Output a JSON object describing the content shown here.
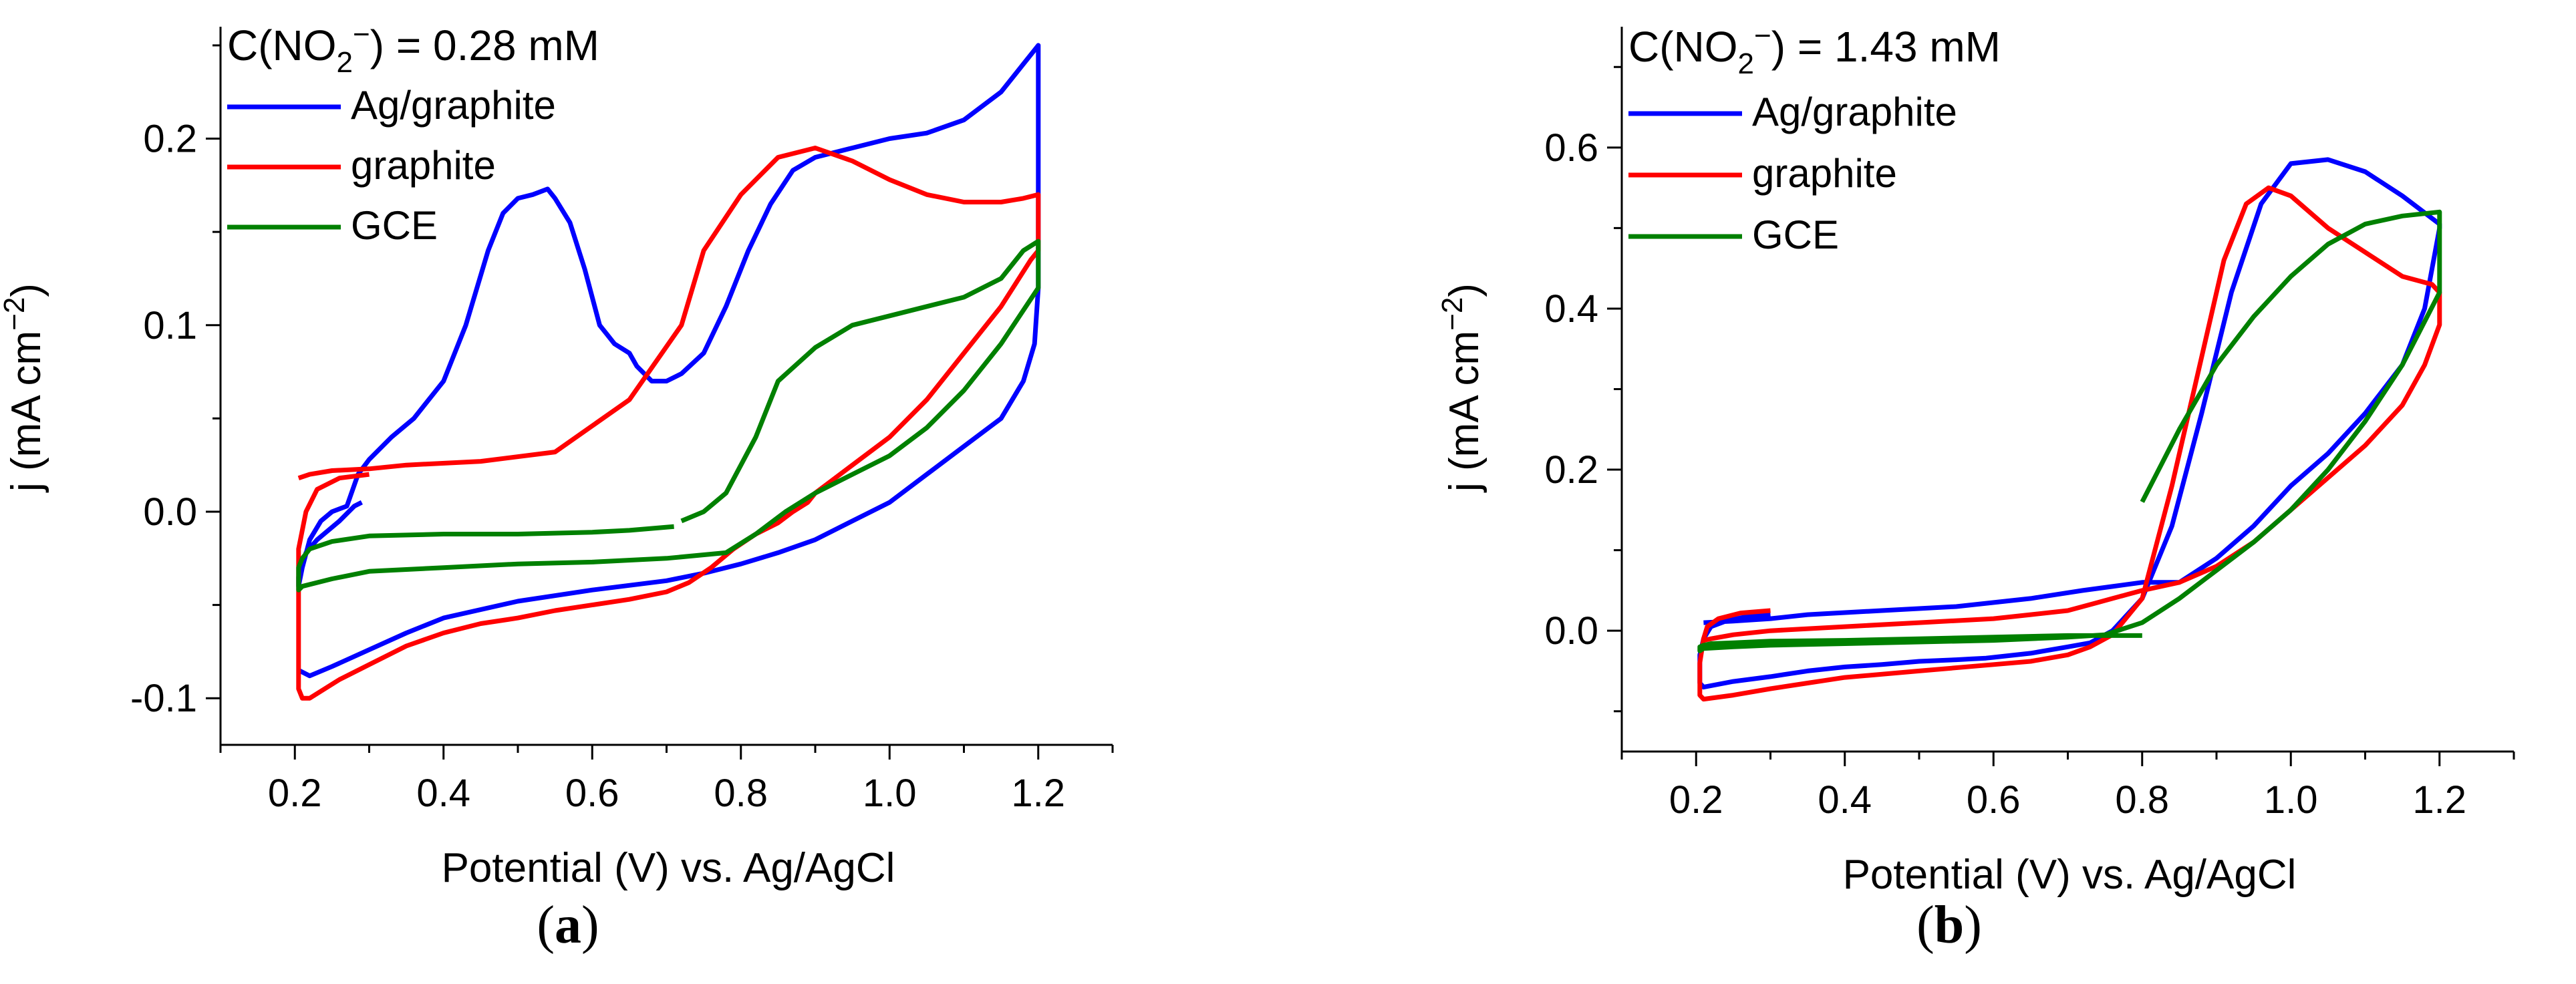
{
  "chart_data": [
    {
      "id": "a",
      "type": "line",
      "panel_label": "a",
      "title": "C(NO2⁻) = 0.28 mM",
      "title_parts": {
        "pre": "C(NO",
        "sub": "2",
        "sup": "−",
        "post": ") = 0.28 mM"
      },
      "xlabel": "Potential (V) vs. Ag/AgCl",
      "ylabel": "j (mA cm⁻²)",
      "ylabel_parts": {
        "pre": "j (mA cm",
        "sup": "−2",
        "post": ")"
      },
      "xlim": [
        0.1,
        1.3
      ],
      "ylim": [
        -0.125,
        0.26
      ],
      "xticks": [
        0.2,
        0.4,
        0.6,
        0.8,
        1.0,
        1.2
      ],
      "xtick_labels": [
        "0.2",
        "0.4",
        "0.6",
        "0.8",
        "1.0",
        "1.2"
      ],
      "yticks": [
        -0.1,
        0.0,
        0.1,
        0.2
      ],
      "ytick_labels": [
        "-0.1",
        "0.0",
        "0.1",
        "0.2"
      ],
      "legend_position": "top-left",
      "series": [
        {
          "name": "Ag/graphite",
          "color": "#0000ff",
          "x": [
            0.29,
            0.28,
            0.26,
            0.23,
            0.215,
            0.21,
            0.205,
            0.205,
            0.21,
            0.22,
            0.235,
            0.25,
            0.27,
            0.285,
            0.3,
            0.33,
            0.36,
            0.4,
            0.43,
            0.46,
            0.48,
            0.5,
            0.52,
            0.54,
            0.55,
            0.57,
            0.59,
            0.61,
            0.62,
            0.63,
            0.65,
            0.66,
            0.68,
            0.7,
            0.72,
            0.75,
            0.78,
            0.81,
            0.84,
            0.87,
            0.9,
            0.95,
            1.0,
            1.05,
            1.1,
            1.15,
            1.18,
            1.2,
            1.2,
            1.2,
            1.195,
            1.18,
            1.15,
            1.1,
            1.05,
            1.0,
            0.95,
            0.9,
            0.85,
            0.8,
            0.75,
            0.7,
            0.6,
            0.5,
            0.4,
            0.35,
            0.3,
            0.25,
            0.22,
            0.205
          ],
          "y": [
            0.005,
            0.003,
            -0.005,
            -0.015,
            -0.022,
            -0.028,
            -0.035,
            -0.04,
            -0.03,
            -0.015,
            -0.005,
            0.0,
            0.003,
            0.02,
            0.028,
            0.04,
            0.05,
            0.07,
            0.1,
            0.14,
            0.16,
            0.168,
            0.17,
            0.173,
            0.168,
            0.155,
            0.13,
            0.1,
            0.095,
            0.09,
            0.085,
            0.078,
            0.07,
            0.07,
            0.074,
            0.085,
            0.11,
            0.14,
            0.165,
            0.183,
            0.19,
            0.195,
            0.2,
            0.203,
            0.21,
            0.225,
            0.24,
            0.25,
            0.2,
            0.12,
            0.09,
            0.07,
            0.05,
            0.035,
            0.02,
            0.005,
            -0.005,
            -0.015,
            -0.022,
            -0.028,
            -0.033,
            -0.037,
            -0.042,
            -0.048,
            -0.057,
            -0.065,
            -0.074,
            -0.083,
            -0.088,
            -0.085
          ]
        },
        {
          "name": "graphite",
          "color": "#ff0000",
          "x": [
            0.3,
            0.26,
            0.23,
            0.215,
            0.205,
            0.205,
            0.205,
            0.205,
            0.21,
            0.22,
            0.24,
            0.26,
            0.3,
            0.35,
            0.4,
            0.45,
            0.5,
            0.55,
            0.6,
            0.65,
            0.7,
            0.73,
            0.76,
            0.79,
            0.82,
            0.85,
            0.87,
            0.89,
            0.9,
            0.92,
            0.95,
            1.0,
            1.05,
            1.1,
            1.15,
            1.19,
            1.2,
            1.2,
            1.2,
            1.18,
            1.15,
            1.1,
            1.05,
            1.0,
            0.95,
            0.9,
            0.85,
            0.8,
            0.75,
            0.72,
            0.65,
            0.55,
            0.45,
            0.35,
            0.3,
            0.25,
            0.22,
            0.205
          ],
          "y": [
            0.02,
            0.018,
            0.012,
            0.0,
            -0.02,
            -0.04,
            -0.06,
            -0.095,
            -0.1,
            -0.1,
            -0.095,
            -0.09,
            -0.082,
            -0.072,
            -0.065,
            -0.06,
            -0.057,
            -0.053,
            -0.05,
            -0.047,
            -0.043,
            -0.038,
            -0.03,
            -0.02,
            -0.012,
            -0.006,
            0.0,
            0.005,
            0.01,
            0.016,
            0.025,
            0.04,
            0.06,
            0.085,
            0.11,
            0.135,
            0.14,
            0.165,
            0.17,
            0.168,
            0.166,
            0.166,
            0.17,
            0.178,
            0.188,
            0.195,
            0.19,
            0.17,
            0.14,
            0.1,
            0.06,
            0.032,
            0.027,
            0.025,
            0.023,
            0.022,
            0.02,
            0.018
          ]
        },
        {
          "name": "GCE",
          "color": "#008000",
          "x": [
            0.71,
            0.65,
            0.6,
            0.5,
            0.4,
            0.3,
            0.25,
            0.22,
            0.21,
            0.205,
            0.205,
            0.21,
            0.25,
            0.3,
            0.4,
            0.5,
            0.6,
            0.7,
            0.78,
            0.82,
            0.86,
            0.9,
            0.95,
            1.0,
            1.05,
            1.1,
            1.15,
            1.2,
            1.2,
            1.2,
            1.18,
            1.15,
            1.1,
            1.05,
            1.0,
            0.95,
            0.9,
            0.85,
            0.82,
            0.78,
            0.75,
            0.72
          ],
          "y": [
            -0.008,
            -0.01,
            -0.011,
            -0.012,
            -0.012,
            -0.013,
            -0.016,
            -0.02,
            -0.025,
            -0.03,
            -0.042,
            -0.04,
            -0.036,
            -0.032,
            -0.03,
            -0.028,
            -0.027,
            -0.025,
            -0.022,
            -0.012,
            0.0,
            0.01,
            0.02,
            0.03,
            0.045,
            0.065,
            0.09,
            0.12,
            0.14,
            0.145,
            0.14,
            0.125,
            0.115,
            0.11,
            0.105,
            0.1,
            0.088,
            0.07,
            0.04,
            0.01,
            0.0,
            -0.005
          ]
        }
      ]
    },
    {
      "id": "b",
      "type": "line",
      "panel_label": "b",
      "title": "C(NO2⁻) = 1.43 mM",
      "title_parts": {
        "pre": "C(NO",
        "sub": "2",
        "sup": "−",
        "post": ") = 1.43 mM"
      },
      "xlabel": "Potential (V) vs. Ag/AgCl",
      "ylabel": "j (mA cm⁻²)",
      "ylabel_parts": {
        "pre": "j (mA cm",
        "sup": "−2",
        "post": ")"
      },
      "xlim": [
        0.1,
        1.3
      ],
      "ylim": [
        -0.15,
        0.75
      ],
      "xticks": [
        0.2,
        0.4,
        0.6,
        0.8,
        1.0,
        1.2
      ],
      "xtick_labels": [
        "0.2",
        "0.4",
        "0.6",
        "0.8",
        "1.0",
        "1.2"
      ],
      "yticks": [
        0.0,
        0.2,
        0.4,
        0.6
      ],
      "ytick_labels": [
        "0.0",
        "0.2",
        "0.4",
        "0.6"
      ],
      "legend_position": "top-left",
      "series": [
        {
          "name": "Ag/graphite",
          "color": "#0000ff",
          "x": [
            0.3,
            0.27,
            0.24,
            0.22,
            0.21,
            0.205,
            0.205,
            0.21,
            0.25,
            0.3,
            0.35,
            0.4,
            0.45,
            0.5,
            0.55,
            0.57,
            0.59,
            0.6,
            0.65,
            0.7,
            0.73,
            0.76,
            0.8,
            0.84,
            0.88,
            0.92,
            0.96,
            1.0,
            1.05,
            1.1,
            1.15,
            1.2,
            1.2,
            1.2,
            1.18,
            1.15,
            1.1,
            1.05,
            1.0,
            0.95,
            0.9,
            0.85,
            0.8,
            0.76,
            0.72,
            0.65,
            0.55,
            0.45,
            0.35,
            0.3,
            0.25,
            0.21
          ],
          "y": [
            0.02,
            0.018,
            0.012,
            0.005,
            -0.01,
            -0.03,
            -0.065,
            -0.07,
            -0.063,
            -0.057,
            -0.05,
            -0.045,
            -0.042,
            -0.038,
            -0.036,
            -0.035,
            -0.034,
            -0.033,
            -0.028,
            -0.02,
            -0.015,
            0.0,
            0.04,
            0.13,
            0.27,
            0.42,
            0.53,
            0.58,
            0.585,
            0.57,
            0.54,
            0.505,
            0.505,
            0.5,
            0.4,
            0.33,
            0.27,
            0.22,
            0.18,
            0.13,
            0.09,
            0.06,
            0.06,
            0.055,
            0.05,
            0.04,
            0.03,
            0.025,
            0.02,
            0.015,
            0.012,
            0.01
          ]
        },
        {
          "name": "graphite",
          "color": "#ff0000",
          "x": [
            0.3,
            0.26,
            0.23,
            0.215,
            0.21,
            0.205,
            0.205,
            0.21,
            0.25,
            0.3,
            0.35,
            0.4,
            0.5,
            0.6,
            0.65,
            0.7,
            0.73,
            0.76,
            0.8,
            0.84,
            0.88,
            0.91,
            0.94,
            0.97,
            1.0,
            1.05,
            1.1,
            1.15,
            1.19,
            1.2,
            1.2,
            1.18,
            1.15,
            1.1,
            1.05,
            1.0,
            0.95,
            0.9,
            0.85,
            0.8,
            0.78,
            0.76,
            0.74,
            0.72,
            0.7,
            0.65,
            0.6,
            0.5,
            0.4,
            0.3,
            0.25,
            0.22,
            0.21
          ],
          "y": [
            0.025,
            0.022,
            0.015,
            0.005,
            -0.01,
            -0.04,
            -0.08,
            -0.085,
            -0.08,
            -0.072,
            -0.065,
            -0.058,
            -0.05,
            -0.042,
            -0.038,
            -0.03,
            -0.02,
            -0.005,
            0.04,
            0.18,
            0.34,
            0.46,
            0.53,
            0.55,
            0.54,
            0.5,
            0.47,
            0.44,
            0.43,
            0.42,
            0.38,
            0.33,
            0.28,
            0.23,
            0.19,
            0.15,
            0.11,
            0.08,
            0.06,
            0.05,
            0.045,
            0.04,
            0.035,
            0.03,
            0.025,
            0.02,
            0.015,
            0.01,
            0.005,
            0.0,
            -0.005,
            -0.01,
            -0.012
          ]
        },
        {
          "name": "GCE",
          "color": "#008000",
          "x": [
            0.8,
            0.7,
            0.6,
            0.5,
            0.4,
            0.3,
            0.25,
            0.22,
            0.21,
            0.205,
            0.205,
            0.21,
            0.25,
            0.3,
            0.4,
            0.5,
            0.6,
            0.7,
            0.75,
            0.8,
            0.85,
            0.9,
            0.95,
            1.0,
            1.05,
            1.1,
            1.15,
            1.2,
            1.2,
            1.2,
            1.18,
            1.15,
            1.1,
            1.05,
            1.0,
            0.95,
            0.9,
            0.85,
            0.8
          ],
          "y": [
            -0.006,
            -0.006,
            -0.008,
            -0.01,
            -0.012,
            -0.013,
            -0.015,
            -0.016,
            -0.018,
            -0.02,
            -0.025,
            -0.022,
            -0.02,
            -0.018,
            -0.016,
            -0.014,
            -0.012,
            -0.008,
            -0.005,
            0.01,
            0.04,
            0.075,
            0.11,
            0.15,
            0.2,
            0.26,
            0.33,
            0.42,
            0.5,
            0.52,
            0.518,
            0.515,
            0.505,
            0.48,
            0.44,
            0.39,
            0.33,
            0.25,
            0.16
          ]
        }
      ]
    }
  ]
}
